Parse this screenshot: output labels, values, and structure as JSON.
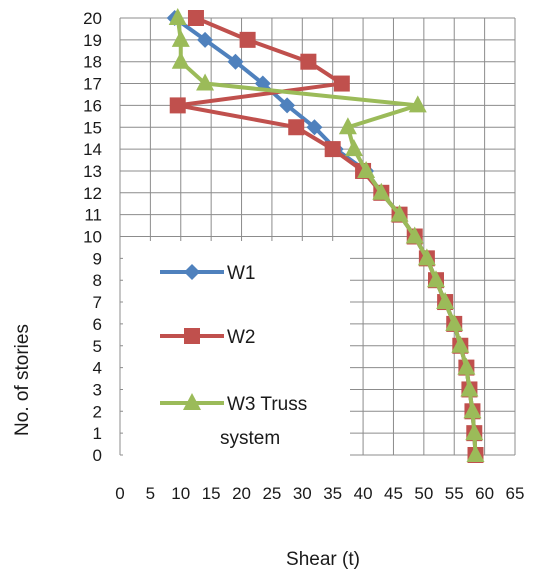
{
  "chart_data": {
    "type": "line",
    "xlabel": "Shear (t)",
    "ylabel": "No. of stories",
    "xlim": [
      0,
      65
    ],
    "ylim": [
      0,
      20
    ],
    "x_ticks": [
      0,
      5,
      10,
      15,
      20,
      25,
      30,
      35,
      40,
      45,
      50,
      55,
      60,
      65
    ],
    "y_ticks": [
      0,
      1,
      2,
      3,
      4,
      5,
      6,
      7,
      8,
      9,
      10,
      11,
      12,
      13,
      14,
      15,
      16,
      17,
      18,
      19,
      20
    ],
    "grid": true,
    "legend_position": "left-center",
    "series": [
      {
        "name": "W1",
        "color": "#4f81bd",
        "marker": "diamond",
        "points": [
          [
            58.5,
            0
          ],
          [
            58.3,
            1
          ],
          [
            58,
            2
          ],
          [
            57.5,
            3
          ],
          [
            57,
            4
          ],
          [
            56,
            5
          ],
          [
            55,
            6
          ],
          [
            53.5,
            7
          ],
          [
            52,
            8
          ],
          [
            50.5,
            9
          ],
          [
            48.5,
            10
          ],
          [
            46,
            11
          ],
          [
            43,
            12
          ],
          [
            40.5,
            13
          ],
          [
            35.5,
            14
          ],
          [
            32,
            15
          ],
          [
            27.5,
            16
          ],
          [
            23.5,
            17
          ],
          [
            19,
            18
          ],
          [
            14,
            19
          ],
          [
            9,
            20
          ]
        ]
      },
      {
        "name": "W2",
        "color": "#c0504d",
        "marker": "square",
        "points": [
          [
            58.5,
            0
          ],
          [
            58.3,
            1
          ],
          [
            58,
            2
          ],
          [
            57.5,
            3
          ],
          [
            57,
            4
          ],
          [
            56,
            5
          ],
          [
            55,
            6
          ],
          [
            53.5,
            7
          ],
          [
            52,
            8
          ],
          [
            50.5,
            9
          ],
          [
            48.5,
            10
          ],
          [
            46,
            11
          ],
          [
            43,
            12
          ],
          [
            40,
            13
          ],
          [
            35,
            14
          ],
          [
            29,
            15
          ],
          [
            9.5,
            16
          ],
          [
            36.5,
            17
          ],
          [
            31,
            18
          ],
          [
            21,
            19
          ],
          [
            12.5,
            20
          ]
        ]
      },
      {
        "name": "W3 Truss system",
        "color": "#9bbb59",
        "marker": "triangle",
        "points": [
          [
            58.5,
            0
          ],
          [
            58.3,
            1
          ],
          [
            58,
            2
          ],
          [
            57.5,
            3
          ],
          [
            57,
            4
          ],
          [
            56,
            5
          ],
          [
            55,
            6
          ],
          [
            53.5,
            7
          ],
          [
            52,
            8
          ],
          [
            50.5,
            9
          ],
          [
            48.5,
            10
          ],
          [
            46,
            11
          ],
          [
            43,
            12
          ],
          [
            40.5,
            13
          ],
          [
            38.5,
            14
          ],
          [
            37.5,
            15
          ],
          [
            49,
            16
          ],
          [
            14,
            17
          ],
          [
            10,
            18
          ],
          [
            10,
            19
          ],
          [
            9.5,
            20
          ]
        ]
      }
    ]
  }
}
